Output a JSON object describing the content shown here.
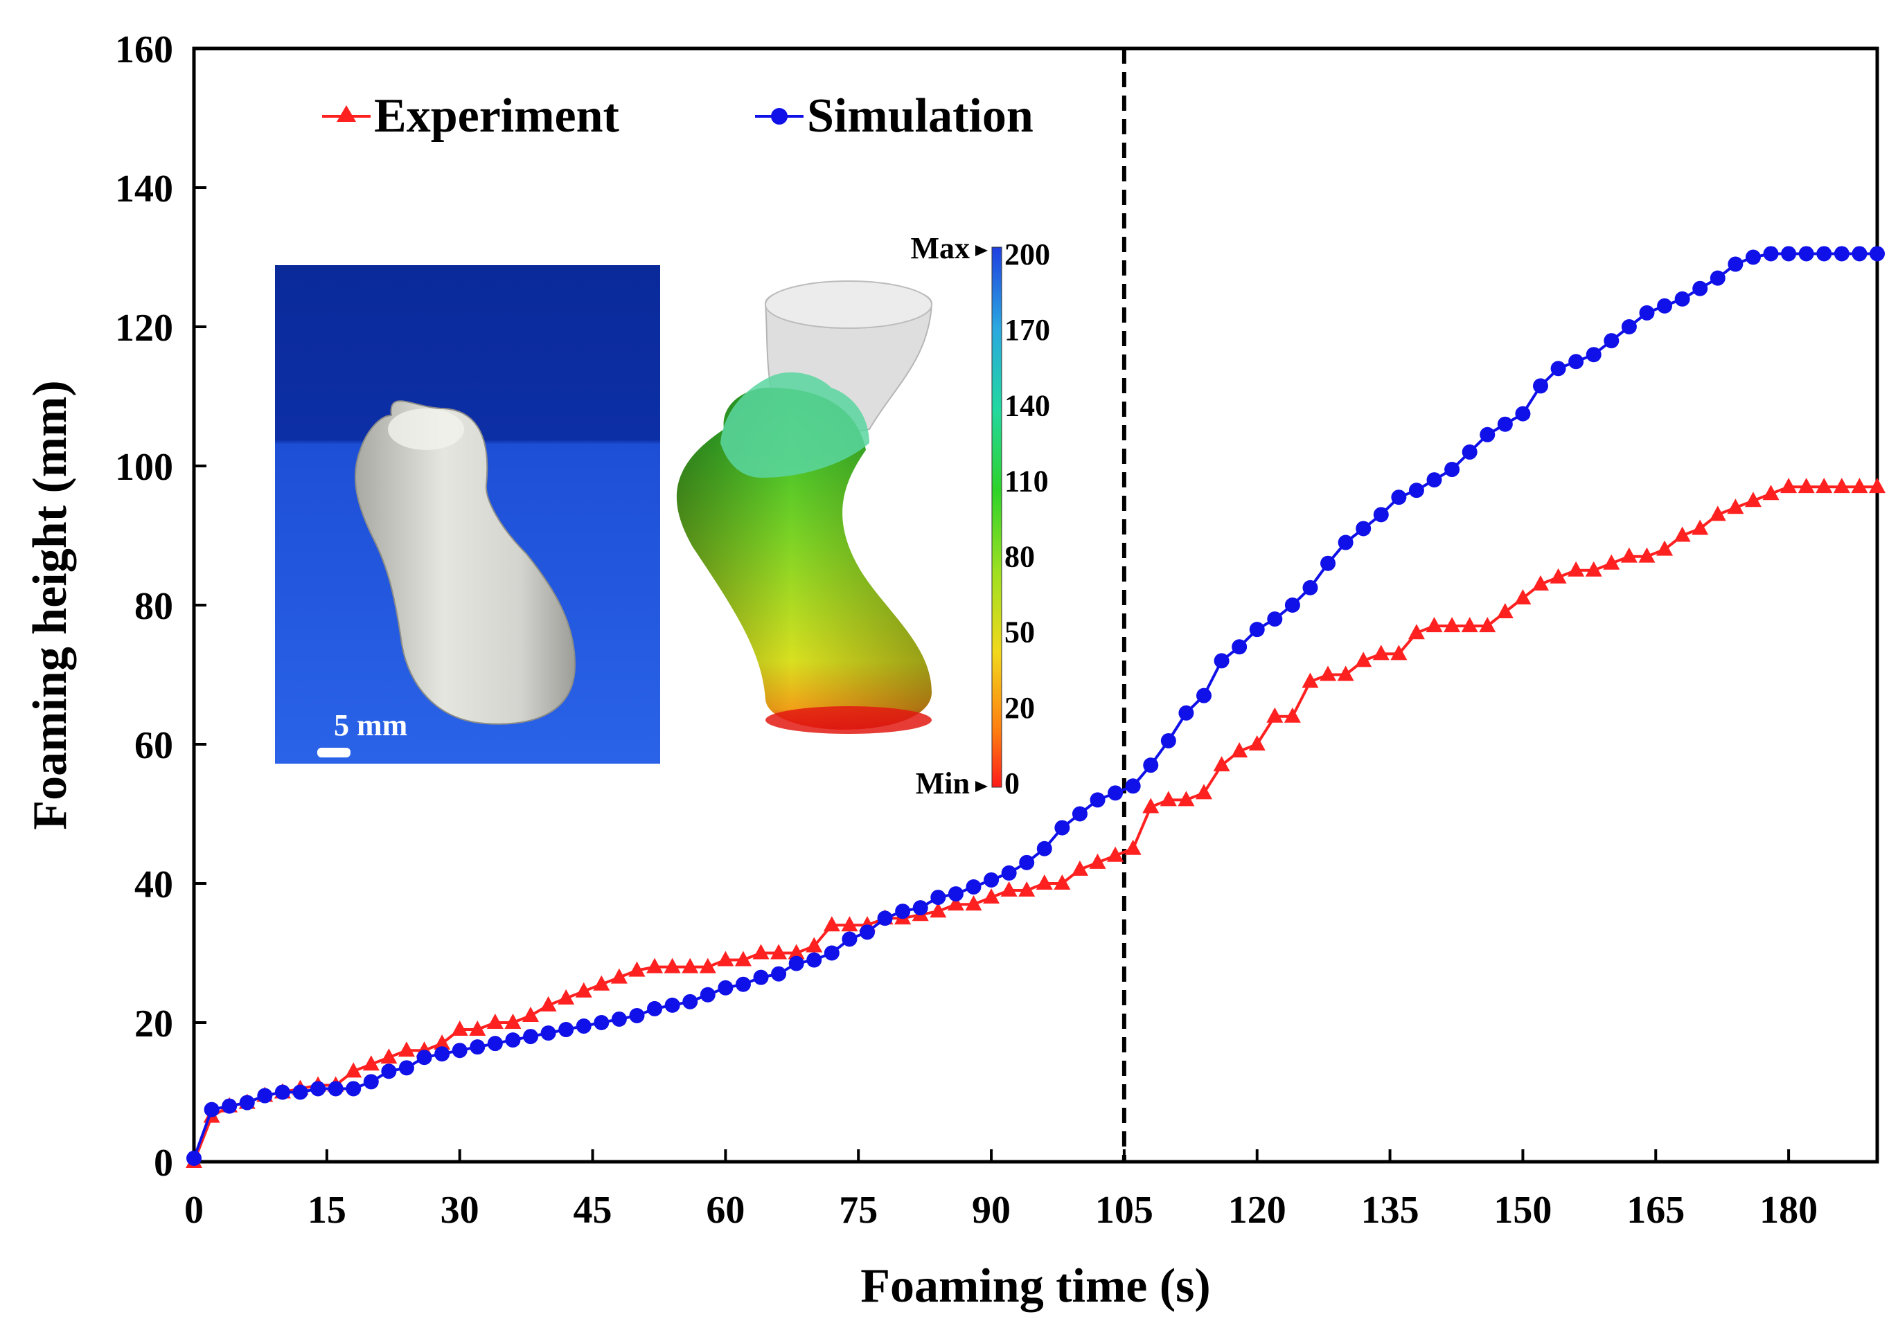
{
  "chart_data": {
    "type": "line",
    "title": "",
    "xlabel": "Foaming time (s)",
    "ylabel": "Foaming height (mm)",
    "xlim": [
      0,
      190
    ],
    "ylim": [
      0,
      160
    ],
    "xticks": [
      0,
      15,
      30,
      45,
      60,
      75,
      90,
      105,
      120,
      135,
      150,
      165,
      180
    ],
    "yticks": [
      0,
      20,
      40,
      60,
      80,
      100,
      120,
      140,
      160
    ],
    "vline_x": 105,
    "legend_position": "top-left",
    "series": [
      {
        "name": "Experiment",
        "color": "#ff2020",
        "marker": "triangle",
        "x": [
          0,
          2,
          4,
          6,
          8,
          10,
          12,
          14,
          16,
          18,
          20,
          22,
          24,
          26,
          28,
          30,
          32,
          34,
          36,
          38,
          40,
          42,
          44,
          46,
          48,
          50,
          52,
          54,
          56,
          58,
          60,
          62,
          64,
          66,
          68,
          70,
          72,
          74,
          76,
          78,
          80,
          82,
          84,
          86,
          88,
          90,
          92,
          94,
          96,
          98,
          100,
          102,
          104,
          106,
          108,
          110,
          112,
          114,
          116,
          118,
          120,
          122,
          124,
          126,
          128,
          130,
          132,
          134,
          136,
          138,
          140,
          142,
          144,
          146,
          148,
          150,
          152,
          154,
          156,
          158,
          160,
          162,
          164,
          166,
          168,
          170,
          172,
          174,
          176,
          178,
          180,
          182,
          184,
          186,
          188,
          190
        ],
        "y": [
          0,
          6.5,
          8,
          8.5,
          9.5,
          10,
          10.5,
          11,
          11,
          13,
          14,
          15,
          16,
          16,
          17,
          19,
          19,
          20,
          20,
          21,
          22.5,
          23.5,
          24.5,
          25.5,
          26.5,
          27.5,
          28,
          28,
          28,
          28,
          29,
          29,
          30,
          30,
          30,
          31,
          34,
          34,
          34,
          35,
          35,
          35.5,
          36,
          37,
          37,
          38,
          39,
          39,
          40,
          40,
          42,
          43,
          44,
          45,
          51,
          52,
          52,
          53,
          57,
          59,
          60,
          64,
          64,
          69,
          70,
          70,
          72,
          73,
          73,
          76,
          77,
          77,
          77,
          77,
          79,
          81,
          83,
          84,
          85,
          85,
          86,
          87,
          87,
          88,
          90,
          91,
          93,
          94,
          95,
          96,
          97,
          97,
          97,
          97,
          97,
          97
        ]
      },
      {
        "name": "Simulation",
        "color": "#1010e8",
        "marker": "circle",
        "x": [
          0,
          2,
          4,
          6,
          8,
          10,
          12,
          14,
          16,
          18,
          20,
          22,
          24,
          26,
          28,
          30,
          32,
          34,
          36,
          38,
          40,
          42,
          44,
          46,
          48,
          50,
          52,
          54,
          56,
          58,
          60,
          62,
          64,
          66,
          68,
          70,
          72,
          74,
          76,
          78,
          80,
          82,
          84,
          86,
          88,
          90,
          92,
          94,
          96,
          98,
          100,
          102,
          104,
          106,
          108,
          110,
          112,
          114,
          116,
          118,
          120,
          122,
          124,
          126,
          128,
          130,
          132,
          134,
          136,
          138,
          140,
          142,
          144,
          146,
          148,
          150,
          152,
          154,
          156,
          158,
          160,
          162,
          164,
          166,
          168,
          170,
          172,
          174,
          176,
          178,
          180,
          182,
          184,
          186,
          188,
          190
        ],
        "y": [
          0.5,
          7.5,
          8,
          8.5,
          9.5,
          10,
          10,
          10.5,
          10.5,
          10.5,
          11.5,
          13,
          13.5,
          15,
          15.5,
          16,
          16.5,
          17,
          17.5,
          18,
          18.5,
          19,
          19.5,
          20,
          20.5,
          21,
          22,
          22.5,
          23,
          24,
          25,
          25.5,
          26.5,
          27,
          28.5,
          29,
          30,
          32,
          33,
          35,
          36,
          36.5,
          38,
          38.5,
          39.5,
          40.5,
          41.5,
          43,
          45,
          48,
          50,
          52,
          53,
          54,
          57,
          60.5,
          64.5,
          67,
          72,
          74,
          76.5,
          78,
          80,
          82.5,
          86,
          89,
          91,
          93,
          95.5,
          96.5,
          98,
          99.5,
          102,
          104.5,
          106,
          107.5,
          111.5,
          114,
          115,
          116,
          118,
          120,
          122,
          123,
          124,
          125.5,
          127,
          129,
          130,
          130.5,
          130.5,
          130.5,
          130.5,
          130.5,
          130.5,
          130.5
        ]
      }
    ],
    "inset": {
      "photo_scale_label": "5 mm",
      "colorbar_max_label": "Max",
      "colorbar_min_label": "Min",
      "colorbar_ticks": [
        200,
        170,
        140,
        110,
        80,
        50,
        20,
        0
      ]
    }
  }
}
